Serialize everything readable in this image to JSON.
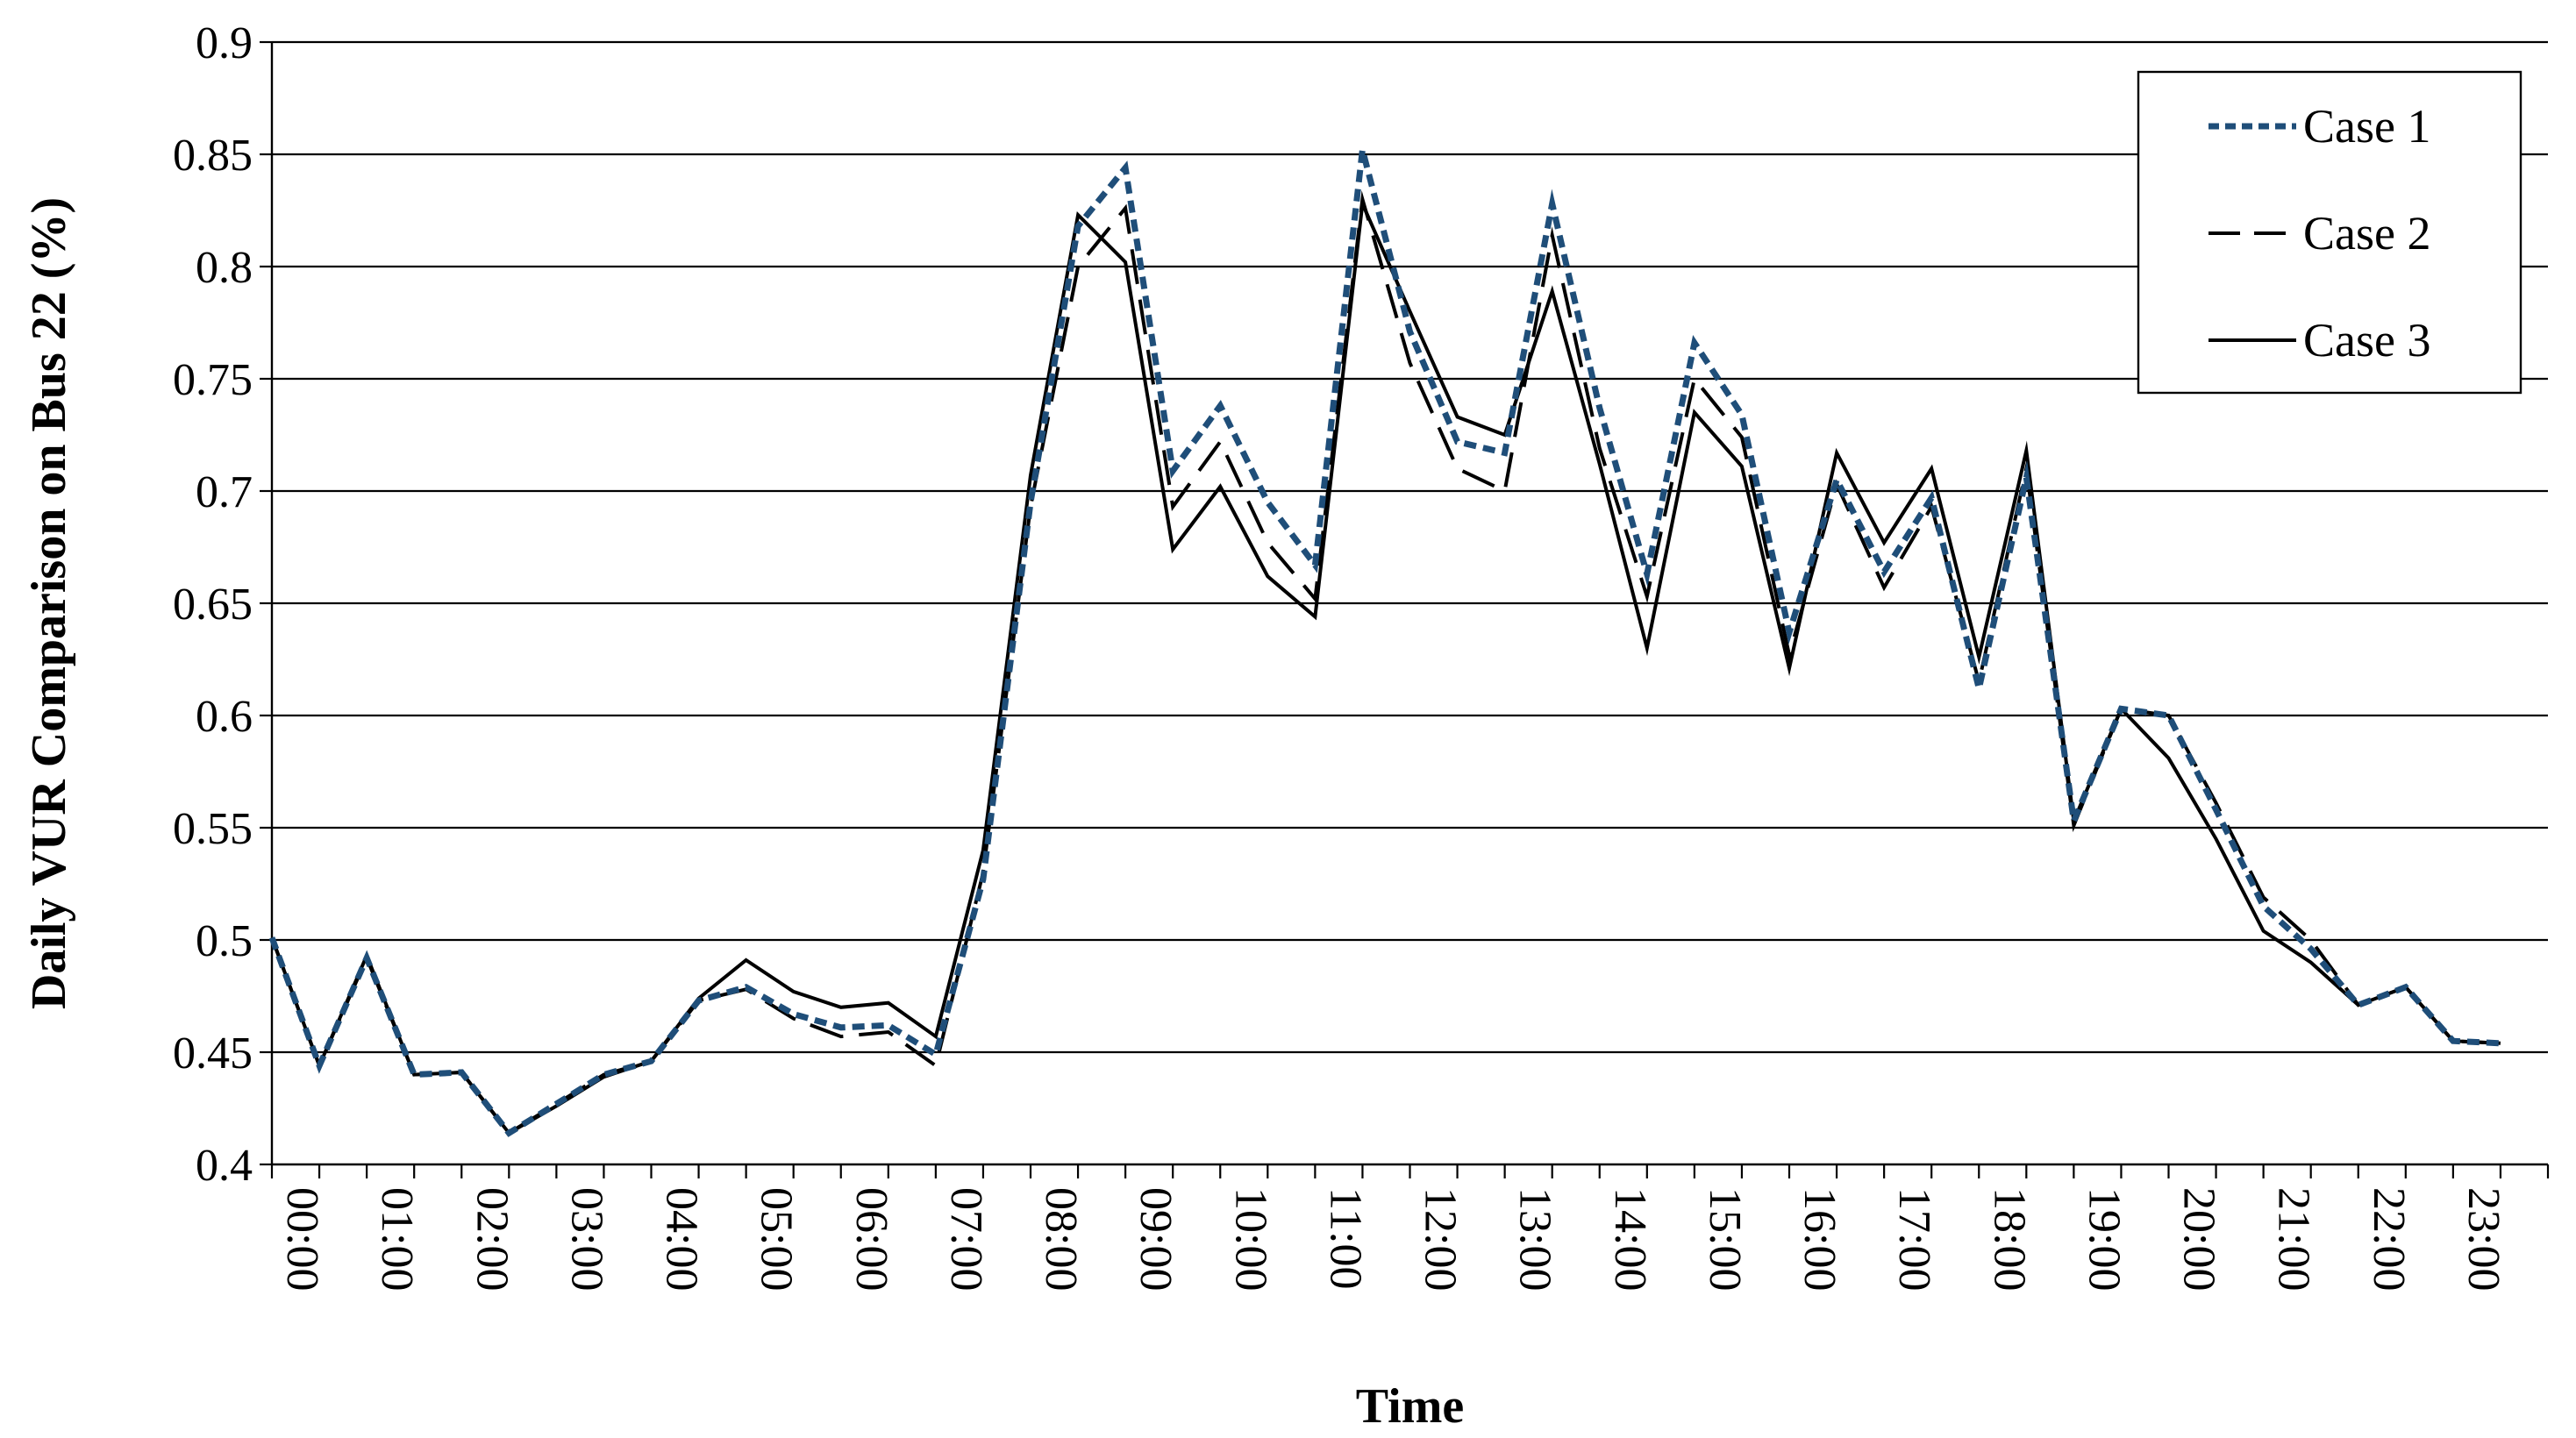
{
  "chart_data": {
    "type": "line",
    "title": "",
    "xlabel": "Time",
    "ylabel": "Daily VUR Comparison on Bus 22 (%)",
    "ylim": [
      0.4,
      0.9
    ],
    "yticks": [
      "0.4",
      "0.45",
      "0.5",
      "0.55",
      "0.6",
      "0.65",
      "0.7",
      "0.75",
      "0.8",
      "0.85",
      "0.9"
    ],
    "x_tick_labels": [
      "00:00",
      "01:00",
      "02:00",
      "03:00",
      "04:00",
      "05:00",
      "06:00",
      "07:00",
      "08:00",
      "09:00",
      "10:00",
      "11:00",
      "12:00",
      "13:00",
      "14:00",
      "15:00",
      "16:00",
      "17:00",
      "18:00",
      "19:00",
      "20:00",
      "21:00",
      "22:00",
      "23:00"
    ],
    "x": [
      "00:00",
      "00:30",
      "01:00",
      "01:30",
      "02:00",
      "02:30",
      "03:00",
      "03:30",
      "04:00",
      "04:30",
      "05:00",
      "05:30",
      "06:00",
      "06:30",
      "07:00",
      "07:30",
      "08:00",
      "08:30",
      "09:00",
      "09:30",
      "10:00",
      "10:30",
      "11:00",
      "11:30",
      "12:00",
      "12:30",
      "13:00",
      "13:30",
      "14:00",
      "14:30",
      "15:00",
      "15:30",
      "16:00",
      "16:30",
      "17:00",
      "17:30",
      "18:00",
      "18:30",
      "19:00",
      "19:30",
      "20:00",
      "20:30",
      "21:00",
      "21:30",
      "22:00",
      "22:30",
      "23:00",
      "23:30"
    ],
    "grid": "horizontal",
    "legend_position": "top-right",
    "series": [
      {
        "name": "Case 1",
        "color": "#1f4e79",
        "style": "dotted",
        "values": [
          0.501,
          0.444,
          0.492,
          0.44,
          0.441,
          0.414,
          0.427,
          0.44,
          0.446,
          0.473,
          0.479,
          0.467,
          0.461,
          0.462,
          0.449,
          0.527,
          0.695,
          0.818,
          0.844,
          0.709,
          0.738,
          0.695,
          0.667,
          0.852,
          0.771,
          0.722,
          0.717,
          0.828,
          0.737,
          0.663,
          0.766,
          0.734,
          0.637,
          0.705,
          0.664,
          0.697,
          0.612,
          0.706,
          0.553,
          0.603,
          0.6,
          0.558,
          0.515,
          0.496,
          0.471,
          0.479,
          0.455,
          0.454
        ]
      },
      {
        "name": "Case 2",
        "color": "#000000",
        "style": "dashed",
        "values": [
          0.501,
          0.444,
          0.492,
          0.44,
          0.441,
          0.414,
          0.427,
          0.44,
          0.446,
          0.473,
          0.478,
          0.465,
          0.457,
          0.459,
          0.444,
          0.53,
          0.693,
          0.8,
          0.826,
          0.693,
          0.722,
          0.677,
          0.652,
          0.83,
          0.757,
          0.71,
          0.7,
          0.814,
          0.719,
          0.653,
          0.75,
          0.724,
          0.627,
          0.703,
          0.657,
          0.693,
          0.615,
          0.71,
          0.551,
          0.603,
          0.6,
          0.561,
          0.519,
          0.5,
          0.471,
          0.479,
          0.455,
          0.454
        ]
      },
      {
        "name": "Case 3",
        "color": "#000000",
        "style": "solid",
        "values": [
          0.501,
          0.444,
          0.493,
          0.44,
          0.441,
          0.414,
          0.426,
          0.439,
          0.446,
          0.474,
          0.491,
          0.477,
          0.47,
          0.472,
          0.457,
          0.54,
          0.707,
          0.823,
          0.802,
          0.674,
          0.702,
          0.662,
          0.644,
          0.828,
          0.78,
          0.733,
          0.725,
          0.789,
          0.712,
          0.63,
          0.735,
          0.711,
          0.621,
          0.717,
          0.677,
          0.71,
          0.626,
          0.718,
          0.553,
          0.603,
          0.581,
          0.545,
          0.504,
          0.49,
          0.471,
          0.479,
          0.455,
          0.454
        ]
      }
    ]
  }
}
